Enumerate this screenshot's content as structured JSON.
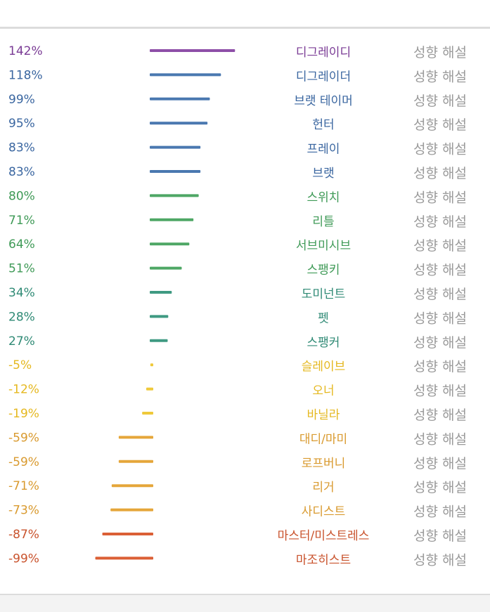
{
  "chart_data": {
    "type": "bar",
    "orientation": "horizontal",
    "categories": [
      "디그레이디",
      "디그레이더",
      "브랫 테이머",
      "헌터",
      "프레이",
      "브랫",
      "스위치",
      "리틀",
      "서브미시브",
      "스팽키",
      "도미넌트",
      "펫",
      "스팽커",
      "슬레이브",
      "오너",
      "바닐라",
      "대디/마미",
      "로프버니",
      "리거",
      "사디스트",
      "마스터/미스트레스",
      "마조히스트"
    ],
    "values": [
      142,
      118,
      99,
      95,
      83,
      83,
      80,
      71,
      64,
      51,
      34,
      28,
      27,
      -5,
      -12,
      -19,
      -59,
      -59,
      -71,
      -73,
      -87,
      -99
    ],
    "value_labels": [
      "142%",
      "118%",
      "99%",
      "95%",
      "83%",
      "83%",
      "80%",
      "71%",
      "64%",
      "51%",
      "34%",
      "28%",
      "27%",
      "-5%",
      "-12%",
      "-19%",
      "-59%",
      "-59%",
      "-71%",
      "-73%",
      "-87%",
      "-99%"
    ],
    "colors": [
      "#8e4fa8",
      "#4a78b0",
      "#4a78b0",
      "#4a78b0",
      "#4a78b0",
      "#4a78b0",
      "#4ea765",
      "#4ea765",
      "#4ea765",
      "#4ea765",
      "#3f9a82",
      "#3f9a82",
      "#3f9a82",
      "#efc93a",
      "#efc93a",
      "#efc93a",
      "#e5a63a",
      "#e5a63a",
      "#e5a63a",
      "#e5a63a",
      "#db5f35",
      "#db5f35"
    ],
    "label_colors": [
      "#7a3b95",
      "#3a66a0",
      "#3a66a0",
      "#3a66a0",
      "#3a66a0",
      "#3a66a0",
      "#3f9a57",
      "#3f9a57",
      "#3f9a57",
      "#3f9a57",
      "#2f8a75",
      "#2f8a75",
      "#2f8a75",
      "#e5b820",
      "#e5b820",
      "#e5b820",
      "#d99a2f",
      "#d99a2f",
      "#d99a2f",
      "#d99a2f",
      "#c9532d",
      "#c9532d"
    ],
    "links": [
      "성향 해설",
      "성향 해설",
      "성향 해설",
      "성향 해설",
      "성향 해설",
      "성향 해설",
      "성향 해설",
      "성향 해설",
      "성향 해설",
      "성향 해설",
      "성향 해설",
      "성향 해설",
      "성향 해설",
      "성향 해설",
      "성향 해설",
      "성향 해설",
      "성향 해설",
      "성향 해설",
      "성향 해설",
      "성향 해설",
      "성향 해설",
      "성향 해설"
    ],
    "xlim": [
      -100,
      142
    ],
    "grid": false,
    "title": "",
    "xlabel": "",
    "ylabel": ""
  }
}
